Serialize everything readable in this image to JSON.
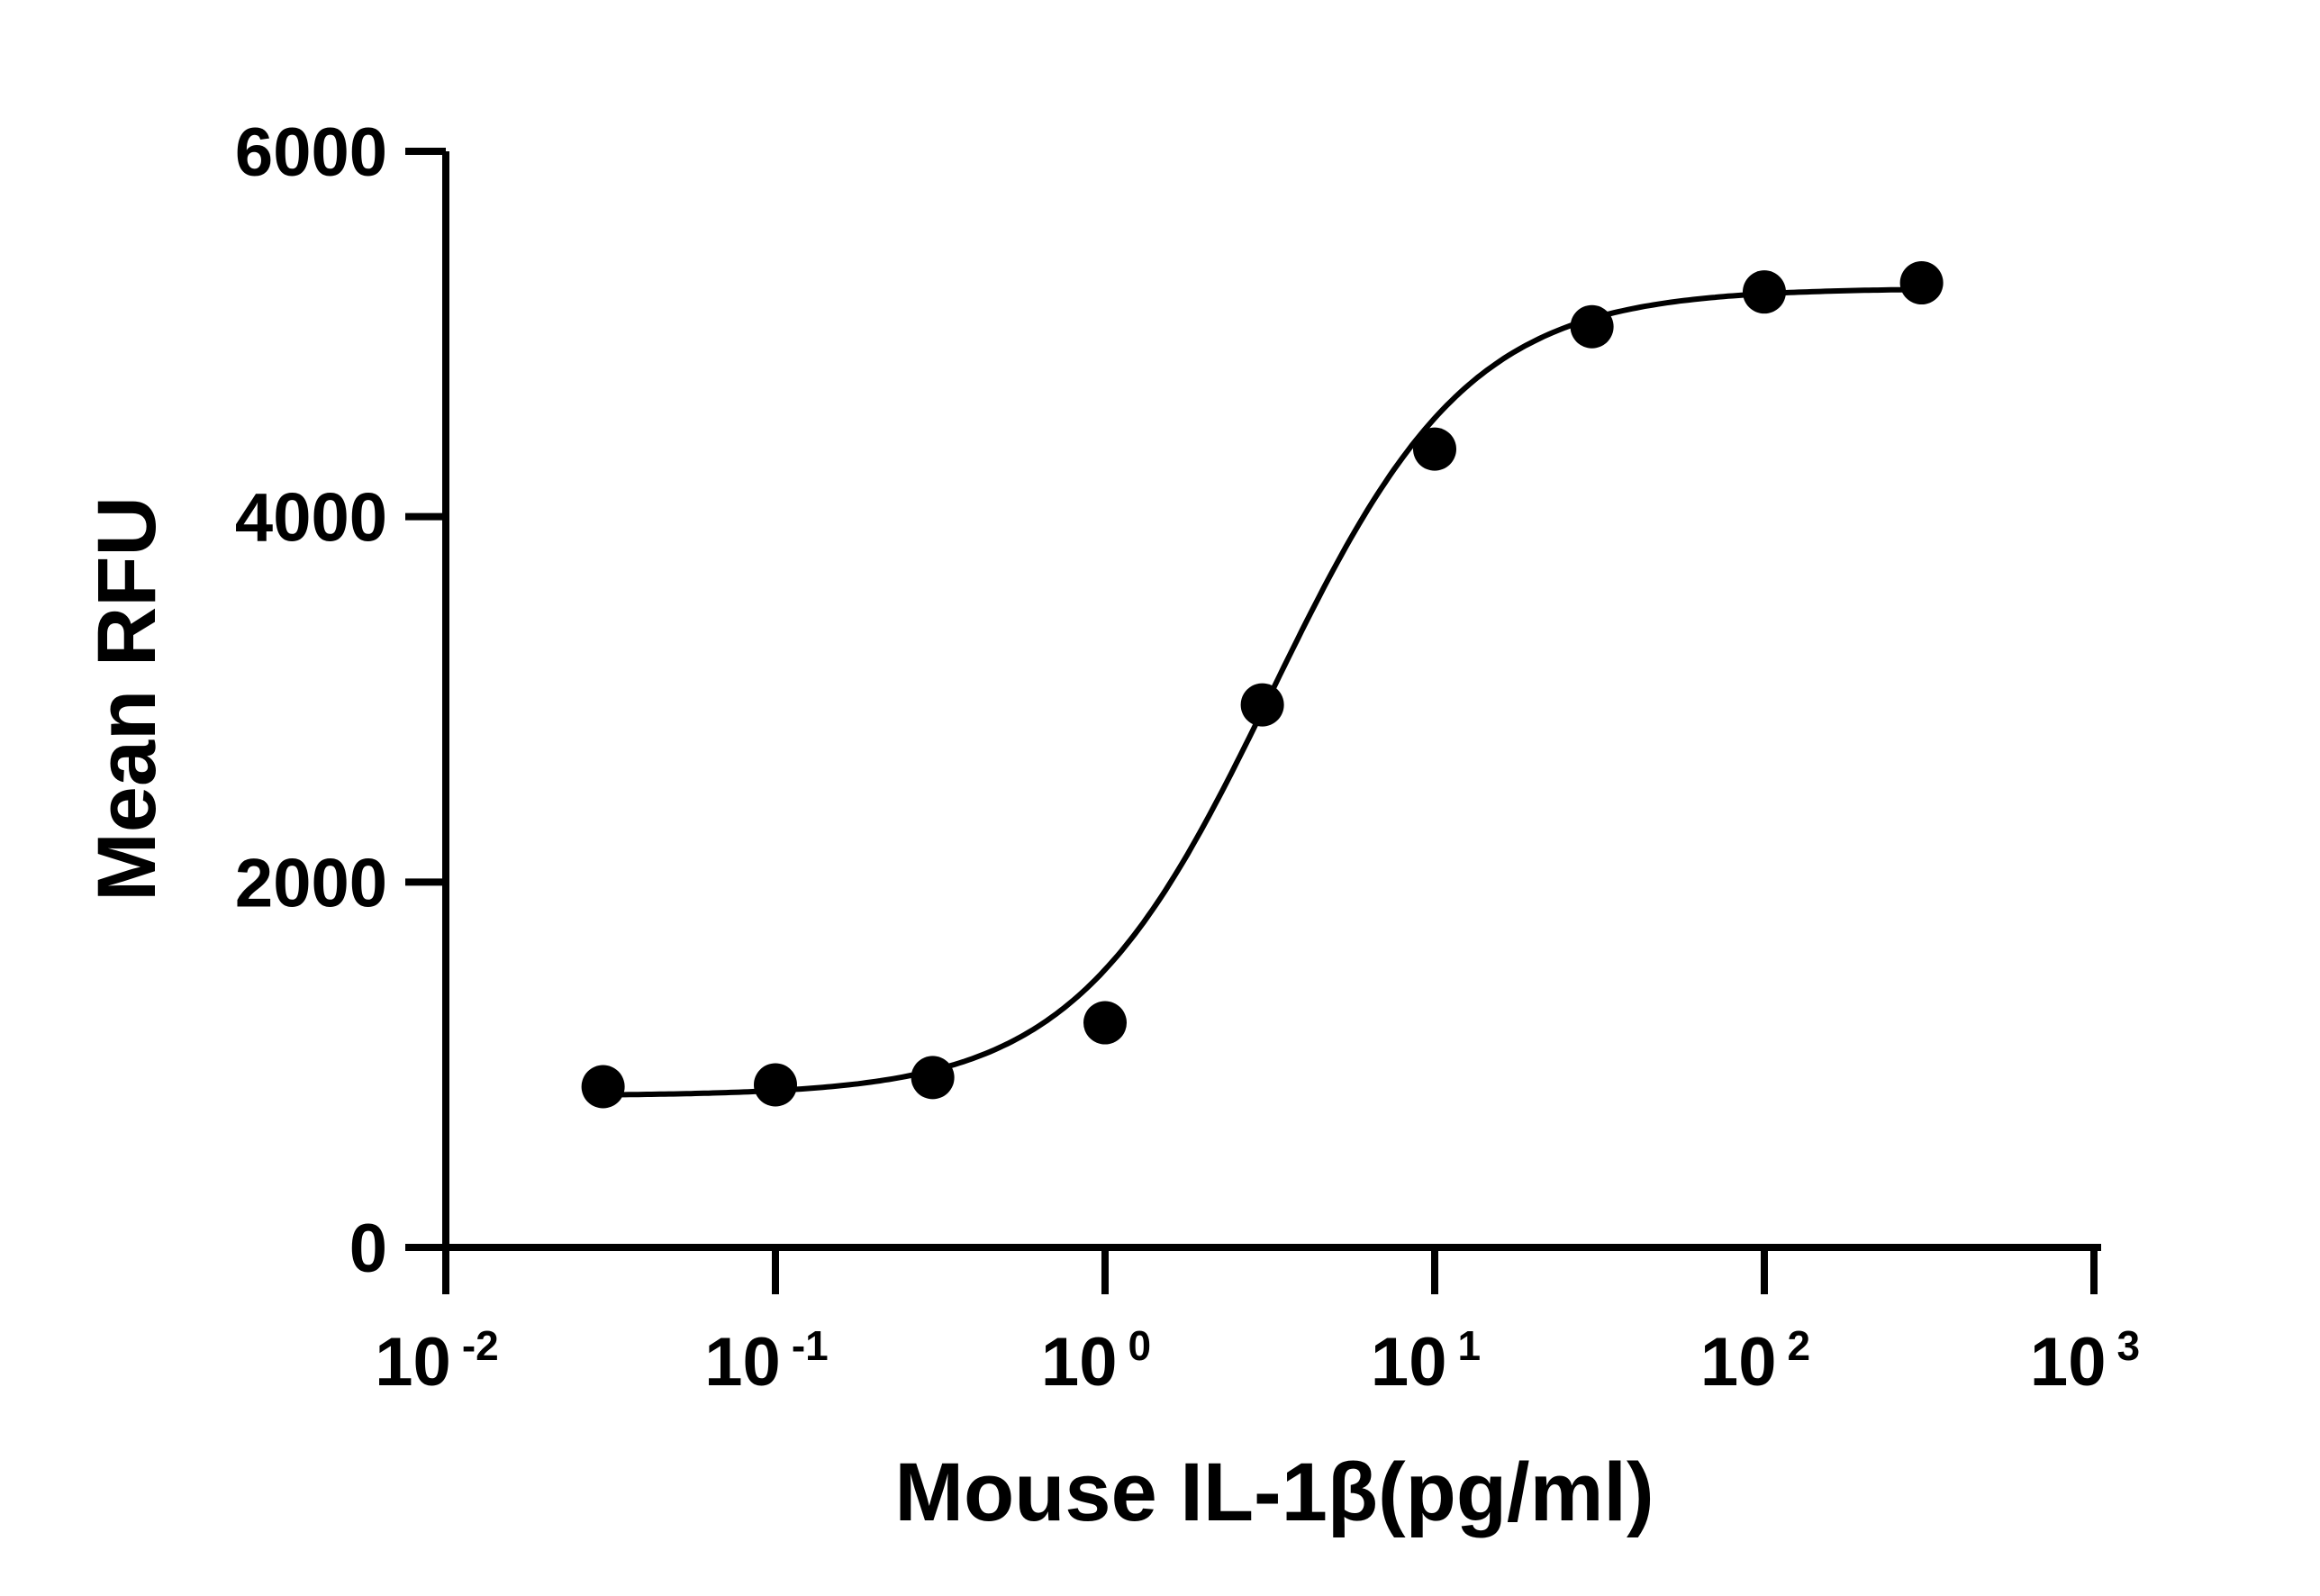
{
  "chart_data": {
    "type": "scatter",
    "title": "",
    "xlabel": "Mouse IL-1β(pg/ml)",
    "ylabel": "Mean RFU",
    "x_scale": "log10",
    "xlim": [
      0.01,
      1000
    ],
    "ylim": [
      0,
      6000
    ],
    "x_ticks": [
      {
        "base": "10",
        "exp": "-2",
        "value": 0.01
      },
      {
        "base": "10",
        "exp": "-1",
        "value": 0.1
      },
      {
        "base": "10",
        "exp": "0",
        "value": 1
      },
      {
        "base": "10",
        "exp": "1",
        "value": 10
      },
      {
        "base": "10",
        "exp": "2",
        "value": 100
      },
      {
        "base": "10",
        "exp": "3",
        "value": 1000
      }
    ],
    "y_ticks": [
      {
        "label": "0",
        "value": 0
      },
      {
        "label": "2000",
        "value": 2000
      },
      {
        "label": "4000",
        "value": 4000
      },
      {
        "label": "6000",
        "value": 6000
      }
    ],
    "series": [
      {
        "points": [
          {
            "x": 0.03,
            "y": 880
          },
          {
            "x": 0.1,
            "y": 890
          },
          {
            "x": 0.3,
            "y": 930
          },
          {
            "x": 1,
            "y": 1230
          },
          {
            "x": 3,
            "y": 2970
          },
          {
            "x": 10,
            "y": 4370
          },
          {
            "x": 30,
            "y": 5040
          },
          {
            "x": 100,
            "y": 5230
          },
          {
            "x": 300,
            "y": 5280
          }
        ],
        "fit": {
          "model": "4PL",
          "bottom": 830,
          "top": 5250,
          "ec50": 3.2,
          "hill": 1.45
        }
      }
    ],
    "grid": false,
    "legend": "none",
    "colors": {
      "marks": "#000000",
      "background": "#ffffff"
    }
  }
}
